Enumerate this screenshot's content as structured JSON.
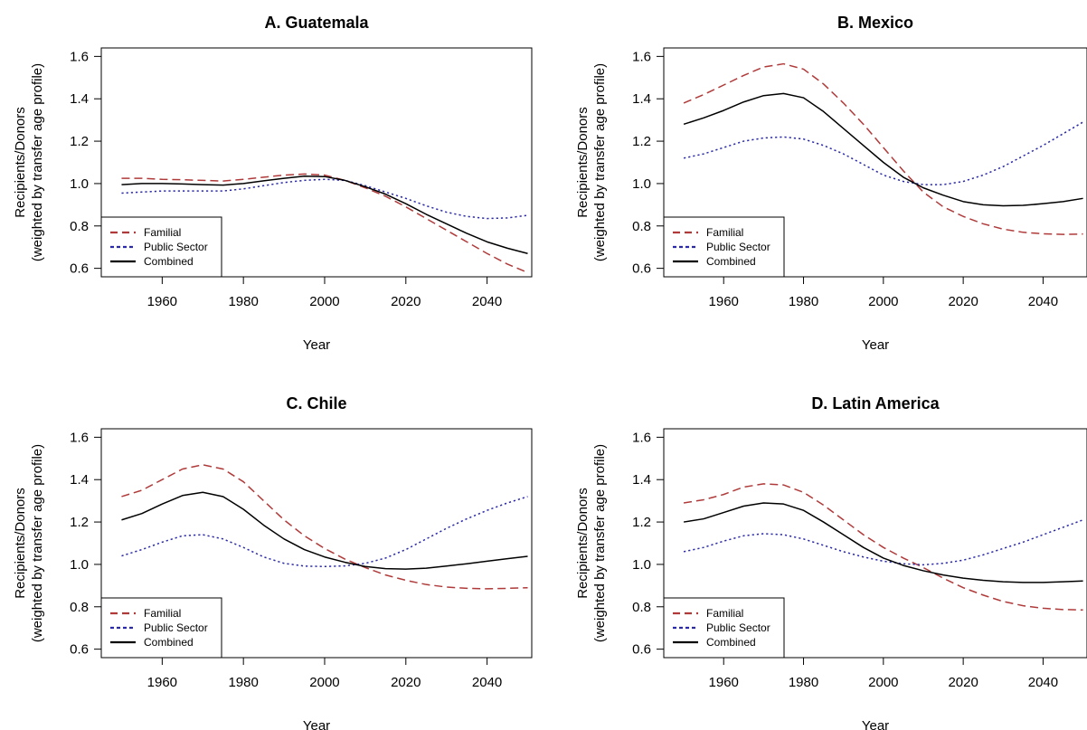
{
  "colors": {
    "familial": "#b03a3a",
    "public": "#2a2aa8",
    "combined": "#000000"
  },
  "chart_data": [
    {
      "type": "line",
      "title": "A. Guatemala",
      "xlabel": "Year",
      "ylabel_lines": [
        "Recipients/Donors",
        "(weighted by transfer age profile)"
      ],
      "xlim": [
        1945,
        2051
      ],
      "ylim": [
        0.56,
        1.64
      ],
      "xticks": [
        1960,
        1980,
        2000,
        2020,
        2040
      ],
      "yticks": [
        0.6,
        0.8,
        1.0,
        1.2,
        1.4,
        1.6
      ],
      "ytick_labels": [
        "0.6",
        "0.8",
        "1.0",
        "1.2",
        "1.4",
        "1.6"
      ],
      "legend_position": "bottom-left",
      "series": [
        {
          "name": "Familial",
          "style": "dashed",
          "color_key": "familial",
          "x": [
            1950,
            1955,
            1960,
            1965,
            1970,
            1975,
            1980,
            1985,
            1990,
            1995,
            2000,
            2005,
            2010,
            2015,
            2020,
            2025,
            2030,
            2035,
            2040,
            2045,
            2050
          ],
          "y": [
            1.025,
            1.025,
            1.02,
            1.018,
            1.015,
            1.012,
            1.02,
            1.03,
            1.04,
            1.045,
            1.04,
            1.015,
            0.98,
            0.94,
            0.89,
            0.835,
            0.78,
            0.725,
            0.67,
            0.62,
            0.58
          ]
        },
        {
          "name": "Public Sector",
          "style": "dotted",
          "color_key": "public",
          "x": [
            1950,
            1955,
            1960,
            1965,
            1970,
            1975,
            1980,
            1985,
            1990,
            1995,
            2000,
            2005,
            2010,
            2015,
            2020,
            2025,
            2030,
            2035,
            2040,
            2045,
            2050
          ],
          "y": [
            0.955,
            0.96,
            0.965,
            0.965,
            0.965,
            0.965,
            0.975,
            0.99,
            1.005,
            1.015,
            1.02,
            1.015,
            0.99,
            0.96,
            0.93,
            0.895,
            0.865,
            0.845,
            0.835,
            0.838,
            0.85
          ]
        },
        {
          "name": "Combined",
          "style": "solid",
          "color_key": "combined",
          "x": [
            1950,
            1955,
            1960,
            1965,
            1970,
            1975,
            1980,
            1985,
            1990,
            1995,
            2000,
            2005,
            2010,
            2015,
            2020,
            2025,
            2030,
            2035,
            2040,
            2045,
            2050
          ],
          "y": [
            0.995,
            1.0,
            1.0,
            0.998,
            0.995,
            0.993,
            1.0,
            1.013,
            1.025,
            1.035,
            1.033,
            1.015,
            0.985,
            0.95,
            0.905,
            0.855,
            0.81,
            0.765,
            0.725,
            0.695,
            0.67
          ]
        }
      ]
    },
    {
      "type": "line",
      "title": "B. Mexico",
      "xlabel": "Year",
      "ylabel_lines": [
        "Recipients/Donors",
        "(weighted by transfer age profile)"
      ],
      "xlim": [
        1945,
        2051
      ],
      "ylim": [
        0.56,
        1.64
      ],
      "xticks": [
        1960,
        1980,
        2000,
        2020,
        2040
      ],
      "yticks": [
        0.6,
        0.8,
        1.0,
        1.2,
        1.4,
        1.6
      ],
      "ytick_labels": [
        "0.6",
        "0.8",
        "1.0",
        "1.2",
        "1.4",
        "1.6"
      ],
      "legend_position": "bottom-left",
      "series": [
        {
          "name": "Familial",
          "style": "dashed",
          "color_key": "familial",
          "x": [
            1950,
            1955,
            1960,
            1965,
            1970,
            1975,
            1980,
            1985,
            1990,
            1995,
            2000,
            2005,
            2010,
            2015,
            2020,
            2025,
            2030,
            2035,
            2040,
            2045,
            2050
          ],
          "y": [
            1.38,
            1.42,
            1.465,
            1.51,
            1.55,
            1.565,
            1.54,
            1.47,
            1.38,
            1.28,
            1.17,
            1.06,
            0.96,
            0.89,
            0.845,
            0.81,
            0.785,
            0.77,
            0.763,
            0.76,
            0.762
          ]
        },
        {
          "name": "Public Sector",
          "style": "dotted",
          "color_key": "public",
          "x": [
            1950,
            1955,
            1960,
            1965,
            1970,
            1975,
            1980,
            1985,
            1990,
            1995,
            2000,
            2005,
            2010,
            2015,
            2020,
            2025,
            2030,
            2035,
            2040,
            2045,
            2050
          ],
          "y": [
            1.12,
            1.14,
            1.17,
            1.2,
            1.215,
            1.22,
            1.21,
            1.18,
            1.14,
            1.09,
            1.04,
            1.01,
            0.995,
            0.995,
            1.01,
            1.04,
            1.08,
            1.13,
            1.18,
            1.235,
            1.29
          ]
        },
        {
          "name": "Combined",
          "style": "solid",
          "color_key": "combined",
          "x": [
            1950,
            1955,
            1960,
            1965,
            1970,
            1975,
            1980,
            1985,
            1990,
            1995,
            2000,
            2005,
            2010,
            2015,
            2020,
            2025,
            2030,
            2035,
            2040,
            2045,
            2050
          ],
          "y": [
            1.28,
            1.31,
            1.345,
            1.385,
            1.415,
            1.425,
            1.405,
            1.34,
            1.26,
            1.18,
            1.1,
            1.03,
            0.98,
            0.945,
            0.915,
            0.9,
            0.895,
            0.897,
            0.905,
            0.915,
            0.93
          ]
        }
      ]
    },
    {
      "type": "line",
      "title": "C. Chile",
      "xlabel": "Year",
      "ylabel_lines": [
        "Recipients/Donors",
        "(weighted by transfer age profile)"
      ],
      "xlim": [
        1945,
        2051
      ],
      "ylim": [
        0.56,
        1.64
      ],
      "xticks": [
        1960,
        1980,
        2000,
        2020,
        2040
      ],
      "yticks": [
        0.6,
        0.8,
        1.0,
        1.2,
        1.4,
        1.6
      ],
      "ytick_labels": [
        "0.6",
        "0.8",
        "1.0",
        "1.2",
        "1.4",
        "1.6"
      ],
      "legend_position": "bottom-left",
      "series": [
        {
          "name": "Familial",
          "style": "dashed",
          "color_key": "familial",
          "x": [
            1950,
            1955,
            1960,
            1965,
            1970,
            1975,
            1980,
            1985,
            1990,
            1995,
            2000,
            2005,
            2010,
            2015,
            2020,
            2025,
            2030,
            2035,
            2040,
            2045,
            2050
          ],
          "y": [
            1.32,
            1.35,
            1.4,
            1.45,
            1.47,
            1.45,
            1.39,
            1.3,
            1.21,
            1.135,
            1.075,
            1.025,
            0.985,
            0.95,
            0.925,
            0.905,
            0.893,
            0.887,
            0.885,
            0.887,
            0.89
          ]
        },
        {
          "name": "Public Sector",
          "style": "dotted",
          "color_key": "public",
          "x": [
            1950,
            1955,
            1960,
            1965,
            1970,
            1975,
            1980,
            1985,
            1990,
            1995,
            2000,
            2005,
            2010,
            2015,
            2020,
            2025,
            2030,
            2035,
            2040,
            2045,
            2050
          ],
          "y": [
            1.04,
            1.07,
            1.105,
            1.135,
            1.14,
            1.12,
            1.08,
            1.035,
            1.005,
            0.992,
            0.99,
            0.993,
            1.005,
            1.03,
            1.07,
            1.12,
            1.17,
            1.215,
            1.255,
            1.29,
            1.32
          ]
        },
        {
          "name": "Combined",
          "style": "solid",
          "color_key": "combined",
          "x": [
            1950,
            1955,
            1960,
            1965,
            1970,
            1975,
            1980,
            1985,
            1990,
            1995,
            2000,
            2005,
            2010,
            2015,
            2020,
            2025,
            2030,
            2035,
            2040,
            2045,
            2050
          ],
          "y": [
            1.21,
            1.24,
            1.285,
            1.325,
            1.34,
            1.32,
            1.26,
            1.185,
            1.12,
            1.07,
            1.035,
            1.01,
            0.99,
            0.98,
            0.978,
            0.982,
            0.992,
            1.003,
            1.015,
            1.027,
            1.038
          ]
        }
      ]
    },
    {
      "type": "line",
      "title": "D. Latin America",
      "xlabel": "Year",
      "ylabel_lines": [
        "Recipients/Donors",
        "(weighted by transfer age profile)"
      ],
      "xlim": [
        1945,
        2051
      ],
      "ylim": [
        0.56,
        1.64
      ],
      "xticks": [
        1960,
        1980,
        2000,
        2020,
        2040
      ],
      "yticks": [
        0.6,
        0.8,
        1.0,
        1.2,
        1.4,
        1.6
      ],
      "ytick_labels": [
        "0.6",
        "0.8",
        "1.0",
        "1.2",
        "1.4",
        "1.6"
      ],
      "legend_position": "bottom-left",
      "series": [
        {
          "name": "Familial",
          "style": "dashed",
          "color_key": "familial",
          "x": [
            1950,
            1955,
            1960,
            1965,
            1970,
            1975,
            1980,
            1985,
            1990,
            1995,
            2000,
            2005,
            2010,
            2015,
            2020,
            2025,
            2030,
            2035,
            2040,
            2045,
            2050
          ],
          "y": [
            1.29,
            1.305,
            1.33,
            1.365,
            1.38,
            1.375,
            1.34,
            1.28,
            1.21,
            1.14,
            1.08,
            1.03,
            0.985,
            0.935,
            0.89,
            0.855,
            0.825,
            0.805,
            0.793,
            0.787,
            0.785
          ]
        },
        {
          "name": "Public Sector",
          "style": "dotted",
          "color_key": "public",
          "x": [
            1950,
            1955,
            1960,
            1965,
            1970,
            1975,
            1980,
            1985,
            1990,
            1995,
            2000,
            2005,
            2010,
            2015,
            2020,
            2025,
            2030,
            2035,
            2040,
            2045,
            2050
          ],
          "y": [
            1.06,
            1.08,
            1.11,
            1.135,
            1.145,
            1.14,
            1.12,
            1.09,
            1.06,
            1.035,
            1.015,
            1.003,
            0.998,
            1.005,
            1.02,
            1.045,
            1.075,
            1.105,
            1.14,
            1.175,
            1.21
          ]
        },
        {
          "name": "Combined",
          "style": "solid",
          "color_key": "combined",
          "x": [
            1950,
            1955,
            1960,
            1965,
            1970,
            1975,
            1980,
            1985,
            1990,
            1995,
            2000,
            2005,
            2010,
            2015,
            2020,
            2025,
            2030,
            2035,
            2040,
            2045,
            2050
          ],
          "y": [
            1.2,
            1.215,
            1.245,
            1.275,
            1.29,
            1.285,
            1.255,
            1.2,
            1.14,
            1.08,
            1.03,
            0.995,
            0.97,
            0.95,
            0.935,
            0.925,
            0.918,
            0.915,
            0.915,
            0.918,
            0.922
          ]
        }
      ]
    }
  ]
}
